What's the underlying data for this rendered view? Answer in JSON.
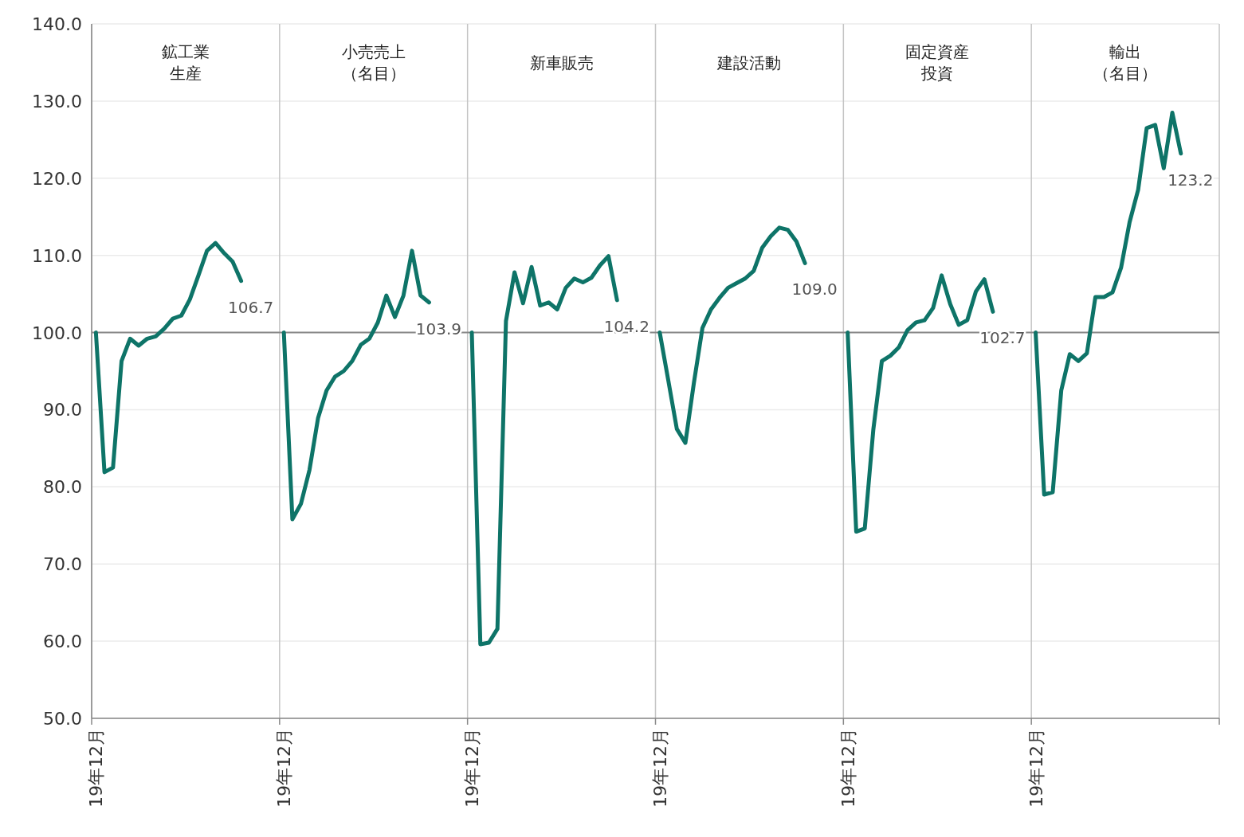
{
  "chart_data": {
    "type": "line",
    "categories": [
      "19年12月",
      null,
      null,
      null,
      null,
      null,
      null,
      null,
      null,
      null,
      null,
      null,
      null,
      null,
      null,
      null,
      null,
      null,
      null,
      null,
      null,
      null,
      "19年12月",
      null,
      null,
      null,
      null,
      null,
      null,
      null,
      null,
      null,
      null,
      null,
      null,
      null,
      null,
      null,
      null,
      null,
      null,
      null,
      null,
      null,
      "19年12月",
      null,
      null,
      null,
      null,
      null,
      null,
      null,
      null,
      null,
      null,
      null,
      null,
      null,
      null,
      null,
      null,
      null,
      null,
      null,
      null,
      null,
      "19年12月",
      null,
      null,
      null,
      null,
      null,
      null,
      null,
      null,
      null,
      null,
      null,
      null,
      null,
      null,
      null,
      null,
      null,
      null,
      null,
      null,
      null,
      "19年12月",
      null,
      null,
      null,
      null,
      null,
      null,
      null,
      null,
      null,
      null,
      null,
      null,
      null,
      null,
      null,
      null,
      null,
      null,
      null,
      null,
      null,
      "19年12月",
      null,
      null,
      null,
      null,
      null,
      null,
      null,
      null,
      null,
      null,
      null,
      null,
      null,
      null,
      null,
      null,
      null,
      null,
      null,
      null,
      null
    ],
    "series": [
      {
        "color": "#0e7468",
        "values": [
          100,
          81.9,
          82.5,
          96.3,
          99.2,
          98.3,
          99.2,
          99.5,
          100.5,
          101.8,
          102.2,
          104.3,
          107.4,
          110.6,
          111.6,
          110.3,
          109.2,
          106.7,
          null,
          null,
          null,
          null,
          100,
          75.8,
          77.8,
          82.2,
          88.9,
          92.5,
          94.3,
          95.0,
          96.3,
          98.4,
          99.2,
          101.3,
          104.8,
          102.0,
          104.8,
          110.6,
          104.8,
          103.9,
          null,
          null,
          null,
          null,
          100,
          59.6,
          59.8,
          61.6,
          101.5,
          107.8,
          103.8,
          108.5,
          103.5,
          103.9,
          103.0,
          105.8,
          107.0,
          106.5,
          107.1,
          108.7,
          109.9,
          104.2,
          null,
          null,
          null,
          null,
          100,
          93.8,
          87.5,
          85.7,
          93.5,
          100.6,
          103.0,
          104.5,
          105.8,
          106.4,
          107.0,
          108.0,
          111.0,
          112.5,
          113.6,
          113.3,
          111.8,
          109.0,
          null,
          null,
          null,
          null,
          100,
          74.2,
          74.6,
          87.4,
          96.3,
          97.0,
          98.1,
          100.3,
          101.3,
          101.6,
          103.2,
          107.4,
          103.7,
          101.0,
          101.6,
          105.3,
          106.9,
          102.7,
          null,
          null,
          null,
          null,
          100,
          79.0,
          79.3,
          92.5,
          97.2,
          96.3,
          97.3,
          104.6,
          104.6,
          105.2,
          108.4,
          114.3,
          118.5,
          126.5,
          126.9,
          121.3,
          128.5,
          123.2,
          null,
          null,
          null,
          null
        ],
        "value_labels": [
          null,
          null,
          null,
          null,
          null,
          null,
          null,
          null,
          null,
          null,
          null,
          null,
          null,
          null,
          null,
          null,
          null,
          "106.7",
          null,
          null,
          null,
          null,
          null,
          null,
          null,
          null,
          null,
          null,
          null,
          null,
          null,
          null,
          null,
          null,
          null,
          null,
          null,
          null,
          null,
          "103.9",
          null,
          null,
          null,
          null,
          null,
          null,
          null,
          null,
          null,
          null,
          null,
          null,
          null,
          null,
          null,
          null,
          null,
          null,
          null,
          null,
          null,
          "104.2",
          null,
          null,
          null,
          null,
          null,
          null,
          null,
          null,
          null,
          null,
          null,
          null,
          null,
          null,
          null,
          null,
          null,
          null,
          null,
          null,
          null,
          "109.0",
          null,
          null,
          null,
          null,
          null,
          null,
          null,
          null,
          null,
          null,
          null,
          null,
          null,
          null,
          null,
          null,
          null,
          null,
          null,
          null,
          null,
          "102.7",
          null,
          null,
          null,
          null,
          null,
          null,
          null,
          null,
          null,
          null,
          null,
          null,
          null,
          null,
          null,
          null,
          null,
          null,
          null,
          null,
          null,
          "123.2",
          null,
          null,
          null,
          null
        ]
      }
    ],
    "ylim": [
      50,
      140
    ],
    "yticks": [
      {
        "value": 50,
        "label": "50.0"
      },
      {
        "value": 60,
        "label": "60.0"
      },
      {
        "value": 70,
        "label": "70.0"
      },
      {
        "value": 80,
        "label": "80.0"
      },
      {
        "value": 90,
        "label": "90.0"
      },
      {
        "value": 100,
        "label": "100.0"
      },
      {
        "value": 110,
        "label": "110.0"
      },
      {
        "value": 120,
        "label": "120.0"
      },
      {
        "value": 130,
        "label": "130.0"
      },
      {
        "value": 140,
        "label": "140.0"
      }
    ],
    "grid": true,
    "ref_lines": [
      {
        "axis": "y",
        "value": 100,
        "color": "#888888"
      }
    ],
    "annotations": [
      "鉱工業生産",
      "小売売上（名目）",
      "新車販売",
      "建設活動",
      "固定資産投資",
      "輸出（名目）"
    ]
  }
}
